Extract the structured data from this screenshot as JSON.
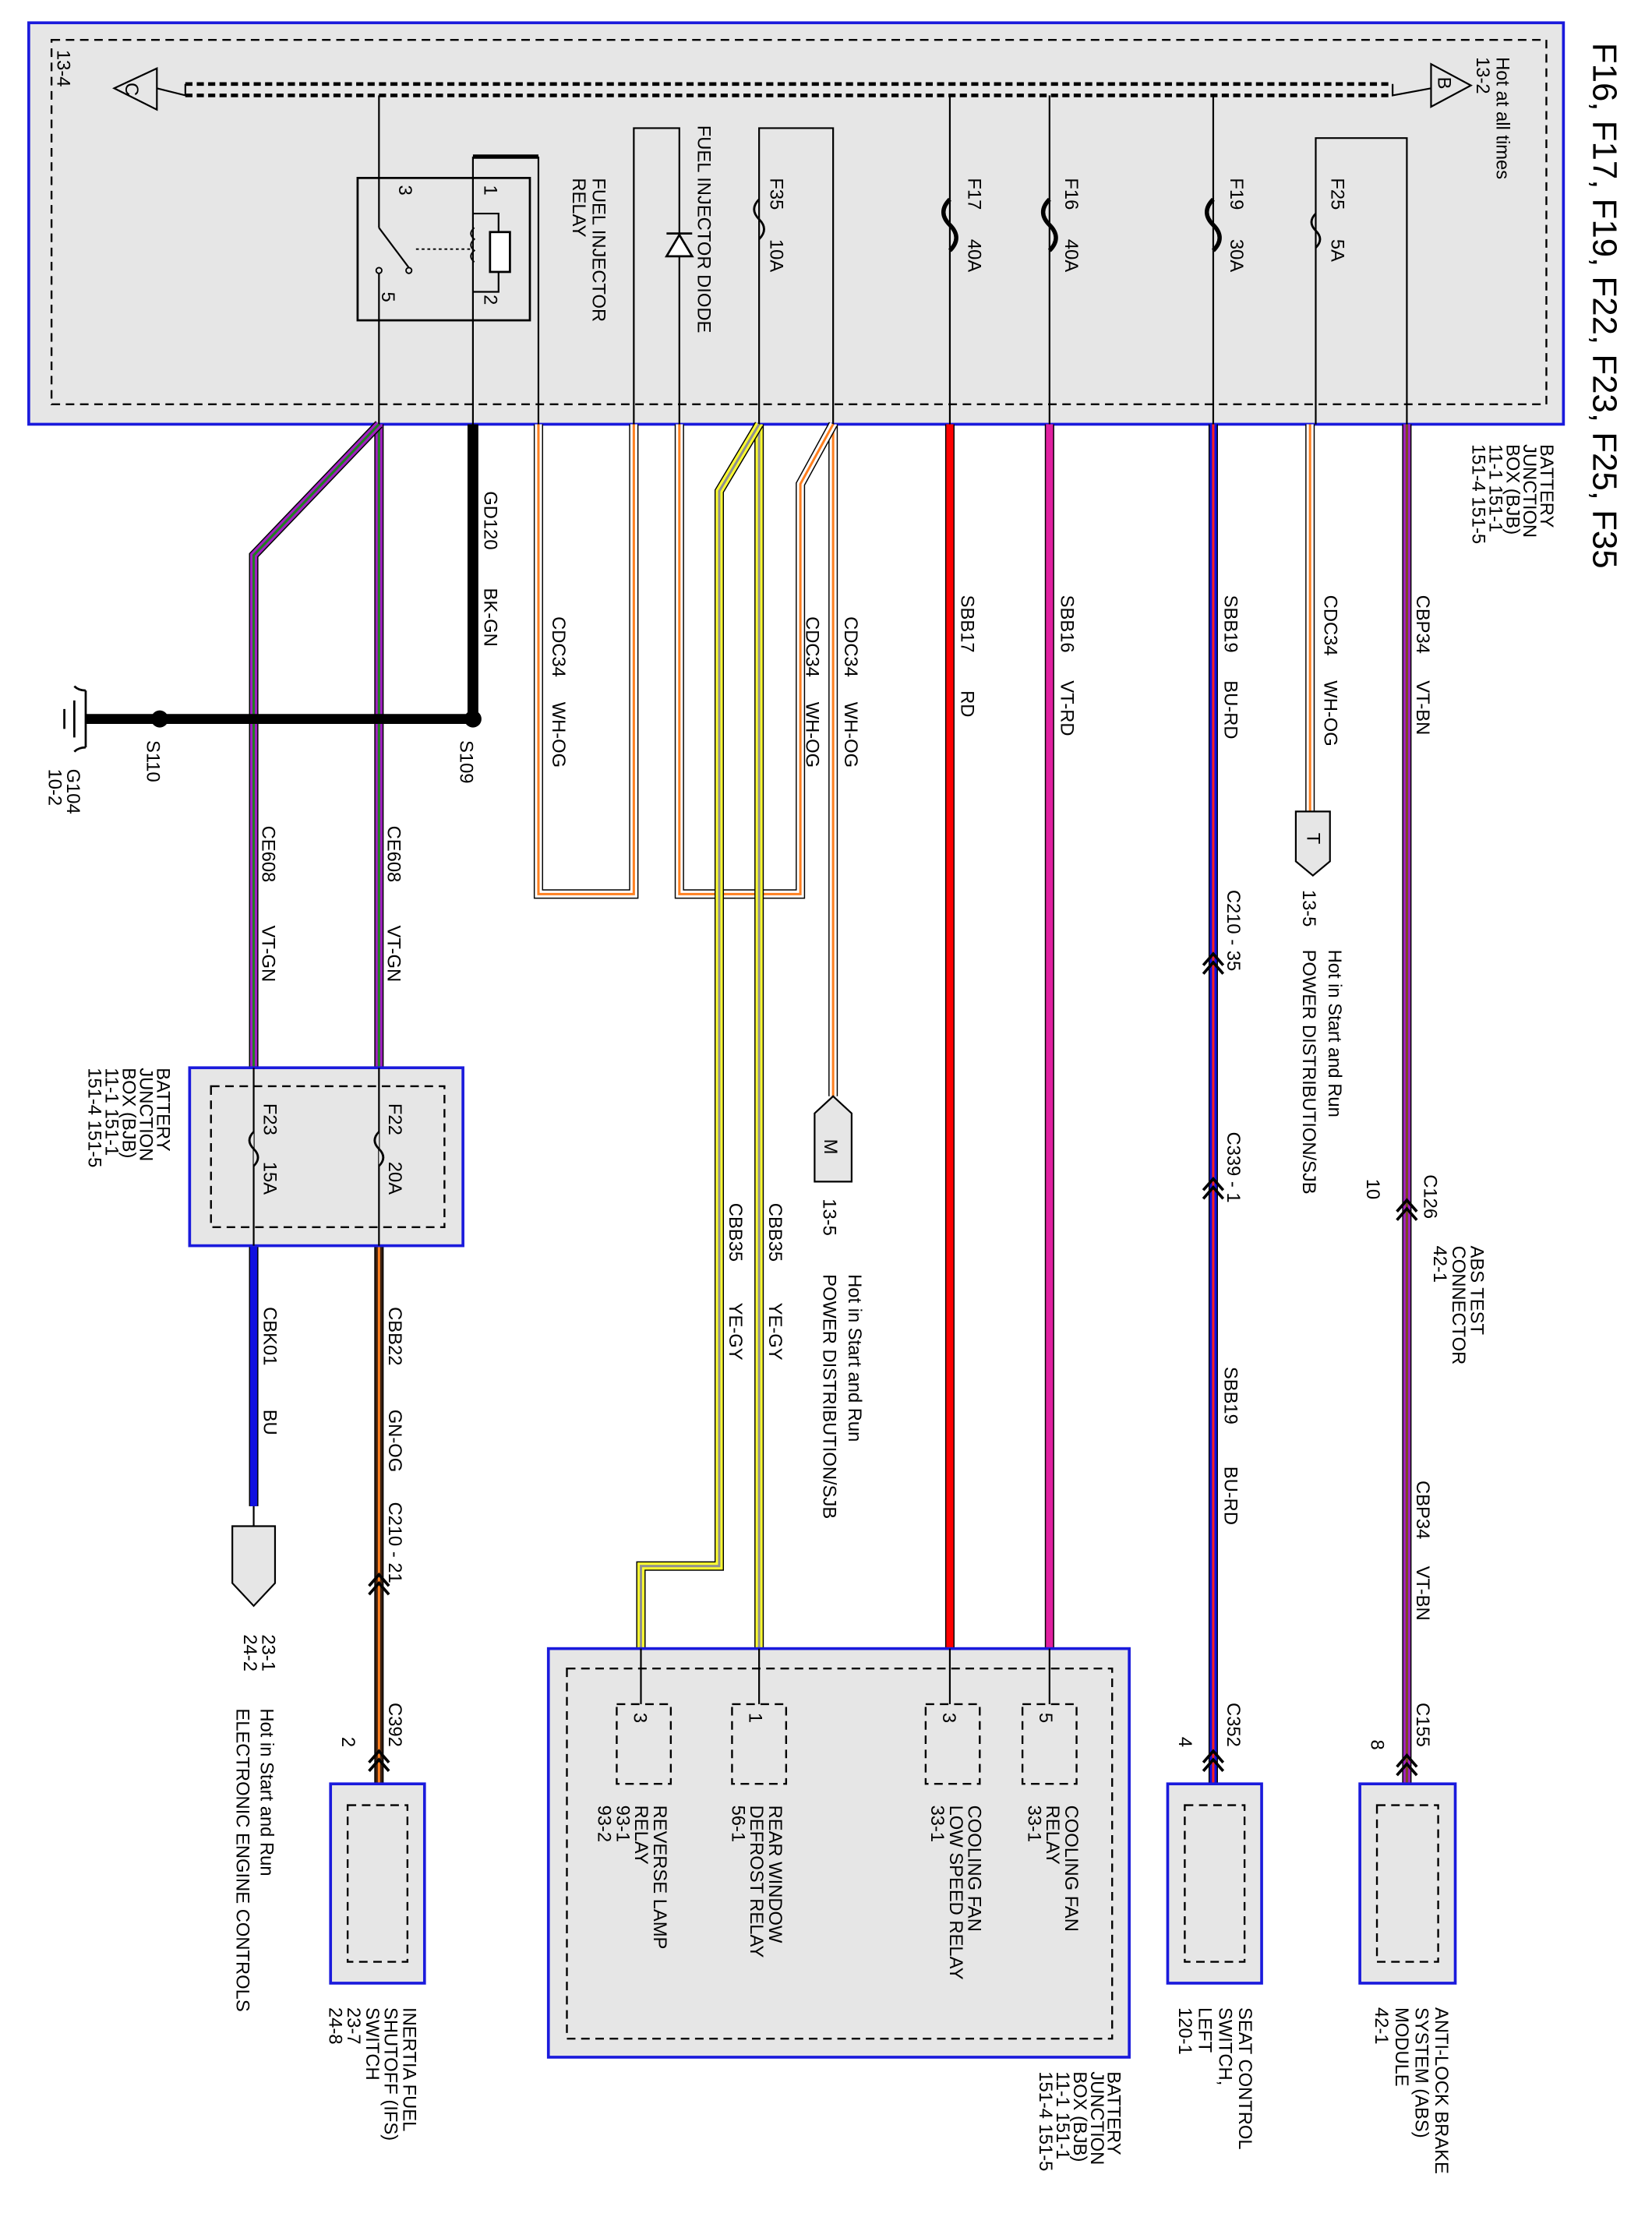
{
  "title": "F16, F17, F19, F22, F23, F25, F35",
  "top_box": {
    "hot_at_all_times": "Hot at all times",
    "ref_b": "13-2",
    "ref_c": "13-4",
    "connector_b": "B",
    "connector_c": "C",
    "relay_label": [
      "FUEL INJECTOR",
      "RELAY"
    ],
    "relay_pins": {
      "p1": "1",
      "p2": "2",
      "p3": "3",
      "p5": "5"
    },
    "diode_label": "FUEL INJECTOR DIODE",
    "fuses": [
      {
        "name": "F35",
        "rating": "10A"
      },
      {
        "name": "F17",
        "rating": "40A"
      },
      {
        "name": "F16",
        "rating": "40A"
      },
      {
        "name": "F19",
        "rating": "30A"
      },
      {
        "name": "F25",
        "rating": "5A"
      }
    ],
    "bjb_label": [
      "BATTERY",
      "JUNCTION",
      "BOX (BJB)",
      "11-1      151-1",
      "151-4   151-5"
    ]
  },
  "wires": {
    "cbp34": {
      "circuit": "CBP34",
      "color": "VT-BN"
    },
    "cdc34_t": {
      "circuit": "CDC34",
      "color": "WH-OG"
    },
    "sbb19": {
      "circuit": "SBB19",
      "color": "BU-RD"
    },
    "sbb16": {
      "circuit": "SBB16",
      "color": "VT-RD"
    },
    "sbb17": {
      "circuit": "SBB17",
      "color": "RD"
    },
    "cdc34_m": {
      "circuit": "CDC34",
      "color": "WH-OG"
    },
    "cdc34_d": {
      "circuit": "CDC34",
      "color": "WH-OG"
    },
    "cdc34_r": {
      "circuit": "CDC34",
      "color": "WH-OG"
    },
    "gd120": {
      "circuit": "GD120",
      "color": "BK-GN"
    },
    "ce608_a": {
      "circuit": "CE608",
      "color": "VT-GN"
    },
    "ce608_b": {
      "circuit": "CE608",
      "color": "VT-GN"
    },
    "cbb35_a": {
      "circuit": "CBB35",
      "color": "YE-GY"
    },
    "cbb35_b": {
      "circuit": "CBB35",
      "color": "YE-GY"
    },
    "sbb19_lower": {
      "circuit": "SBB19",
      "color": "BU-RD"
    },
    "cbp34_lower": {
      "circuit": "CBP34",
      "color": "VT-BN"
    },
    "cbb22": {
      "circuit": "CBB22",
      "color": "GN-OG"
    },
    "cbk01": {
      "circuit": "CBK01",
      "color": "BU"
    }
  },
  "splices": {
    "s109": "S109",
    "s110": "S110",
    "ground": [
      "G104",
      "10-2"
    ]
  },
  "connectors": {
    "t_conn": {
      "letter": "T",
      "ref": "13-5",
      "hot": "Hot in Start and Run",
      "dest": "POWER DISTRIBUTION/SJB"
    },
    "m_conn": {
      "letter": "M",
      "ref": "13-5",
      "hot": "Hot in Start and Run",
      "dest": "POWER DISTRIBUTION/SJB"
    },
    "c210_35": "C210 - 35",
    "c339_1": "C339 - 1",
    "c126": "C126",
    "c126_pin": "10",
    "abs_test": [
      "ABS TEST",
      "CONNECTOR",
      "42-1"
    ],
    "c155": "C155",
    "c155_pin": "8",
    "c352": "C352",
    "c352_pin": "4",
    "c210_21": "C210 - 21",
    "c392": "C392",
    "c392_pin": "2",
    "eec_refs": [
      "23-1",
      "24-2"
    ],
    "eec_hot": "Hot in Start and Run",
    "eec_dest": "ELECTRONIC ENGINE CONTROLS"
  },
  "left_bjb": {
    "fuses": [
      {
        "name": "F22",
        "rating": "20A"
      },
      {
        "name": "F23",
        "rating": "15A"
      }
    ],
    "label": [
      "BATTERY",
      "JUNCTION",
      "BOX (BJB)",
      "11-1      151-1",
      "151-4   151-5"
    ]
  },
  "bottom_bjb": {
    "label": [
      "BATTERY",
      "JUNCTION",
      "BOX (BJB)",
      "11-1      151-1",
      "151-4   151-5"
    ],
    "relays": [
      {
        "pin": "5",
        "lines": [
          "COOLING FAN",
          "RELAY",
          "33-1"
        ]
      },
      {
        "pin": "3",
        "lines": [
          "COOLING FAN",
          "LOW SPEED RELAY",
          "33-1"
        ]
      },
      {
        "pin": "1",
        "lines": [
          "REAR WINDOW",
          "DEFROST RELAY",
          "56-1"
        ]
      },
      {
        "pin": "3",
        "lines": [
          "REVERSE LAMP",
          "RELAY",
          "93-1",
          "93-2"
        ]
      }
    ]
  },
  "components": {
    "abs": [
      "ANTI-LOCK BRAKE",
      "SYSTEM (ABS)",
      "MODULE",
      "42-1"
    ],
    "seat": [
      "SEAT CONTROL",
      "SWITCH,",
      "LEFT",
      "120-1"
    ],
    "ifs": [
      "INERTIA FUEL",
      "SHUTOFF (IFS)",
      "SWITCH",
      "23-7",
      "24-8"
    ]
  },
  "colors": {
    "box_border": "#1a1adc",
    "box_fill": "#e6e6e6",
    "violet": "#a020c0",
    "red": "#ff0000",
    "magenta": "#e020a0",
    "blue": "#1010e0",
    "yellow": "#ffff30",
    "orange": "#ff8020"
  }
}
